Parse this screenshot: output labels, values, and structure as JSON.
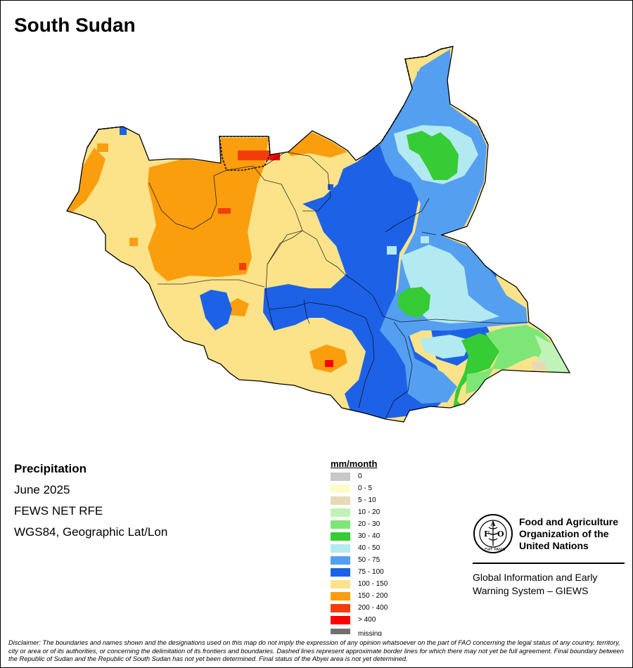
{
  "title": "South Sudan",
  "info": {
    "variable": "Precipitation",
    "period": "June 2025",
    "source": "FEWS NET RFE",
    "projection": "WGS84, Geographic Lat/Lon"
  },
  "legend": {
    "title": "mm/month",
    "items": [
      {
        "label": "0",
        "color": "#c8c8c8"
      },
      {
        "label": "0 - 5",
        "color": "#fdfbc7"
      },
      {
        "label": "5 - 10",
        "color": "#e8d9b6"
      },
      {
        "label": "10 - 20",
        "color": "#bff3b8"
      },
      {
        "label": "20 - 30",
        "color": "#7ee676"
      },
      {
        "label": "30 - 40",
        "color": "#35cc35"
      },
      {
        "label": "40 - 50",
        "color": "#b3eaf1"
      },
      {
        "label": "50 - 75",
        "color": "#559ff1"
      },
      {
        "label": "75 - 100",
        "color": "#1d62e6"
      },
      {
        "label": "100 - 150",
        "color": "#fce38a"
      },
      {
        "label": "150 - 200",
        "color": "#fa9e0e"
      },
      {
        "label": "200 - 400",
        "color": "#f23d0b"
      },
      {
        "label": "> 400",
        "color": "#ff0000"
      }
    ],
    "missing": {
      "label": "missing",
      "color": "#707070"
    }
  },
  "organization": {
    "name_line1": "Food and Agriculture",
    "name_line2": "Organization of the",
    "name_line3": "United Nations",
    "logo_text": "FAO",
    "logo_ring_text": "FIAT PANIS",
    "system_line1": "Global Information and Early",
    "system_line2": "Warning System – GIEWS"
  },
  "disclaimer": "Disclaimer: The boundaries and names shown and the designations used on this map do not imply the expression of any opinion whatsoever on the part of FAO concerning the legal status of any country, territory, city or area or of its authorities, or concerning the delimitation of its frontiers and boundaries. Dashed lines represent approximate border lines for which there may not yet be full agreement. Final boundary between the Republic of Sudan and the Republic of South Sudan has not yet been determined. Final status of the Abyei area is not yet determined."
}
